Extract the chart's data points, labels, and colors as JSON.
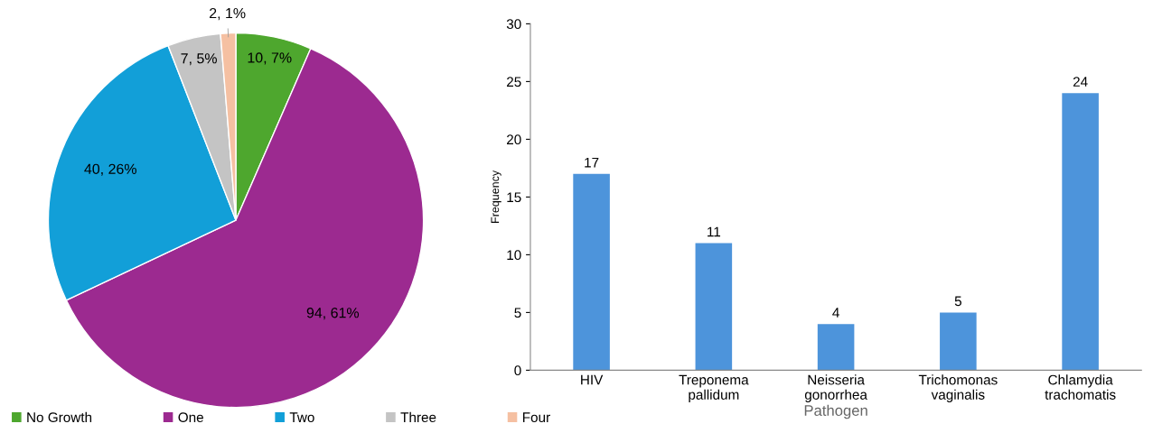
{
  "chart_data": [
    {
      "type": "pie",
      "categories": [
        "No Growth",
        "One",
        "Two",
        "Three",
        "Four"
      ],
      "values": [
        10,
        94,
        40,
        7,
        2
      ],
      "value_labels": [
        "10, 7%",
        "94, 61%",
        "40, 26%",
        "7, 5%",
        "2, 1%"
      ],
      "colors": [
        "#4ea72e",
        "#9c2a90",
        "#129fd8",
        "#c4c4c4",
        "#f5c0a2"
      ],
      "legend": "bottom"
    },
    {
      "type": "bar",
      "categories": [
        "HIV",
        "Treponema\npallidum",
        "Neisseria\ngonorrhea",
        "Trichomonas\nvaginalis",
        "Chlamydia\ntrachomatis"
      ],
      "values": [
        17,
        11,
        4,
        5,
        24
      ],
      "color": "#4d94db",
      "xlabel": "Pathogen",
      "ylabel": "Frequency",
      "ylim": [
        0,
        30
      ],
      "yticks": [
        0,
        5,
        10,
        15,
        20,
        25,
        30
      ],
      "data_labels": true,
      "grid": false
    }
  ]
}
